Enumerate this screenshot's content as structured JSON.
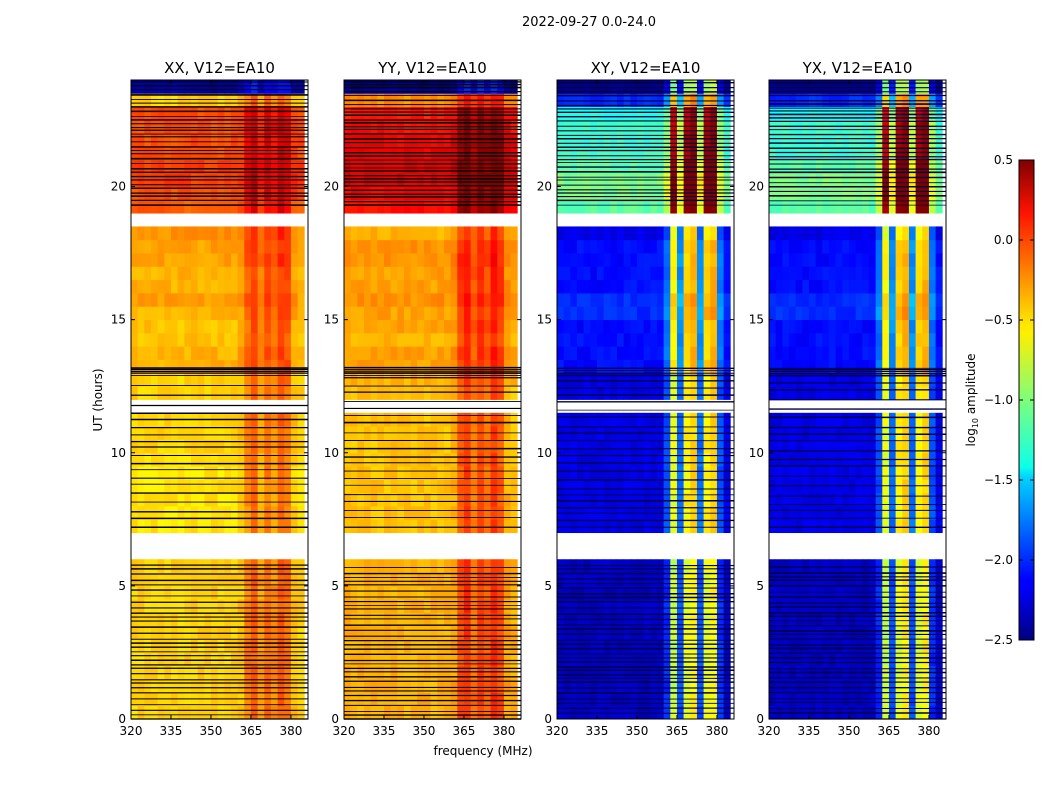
{
  "chart_data": {
    "type": "heatmap",
    "suptitle": "2022-09-27 0.0-24.0",
    "xlabel": "frequency (MHz)",
    "ylabel": "UT (hours)",
    "xlim": [
      320,
      386.4
    ],
    "ylim": [
      0,
      24
    ],
    "xticks": [
      320,
      335,
      350,
      365,
      380
    ],
    "yticks": [
      0,
      5,
      10,
      15,
      20
    ],
    "freq_bin_start_mhz": 320,
    "freq_bin_width_mhz": 2.5,
    "time_bin_hours": 0.5,
    "value_model": "value = row_levels[t] + band_offsets[f], clipped to colorbar range; null = no data",
    "panels": [
      {
        "title": "XX, V12=EA10",
        "row_levels": [
          -0.5,
          -0.5,
          -0.5,
          -0.5,
          -0.5,
          -0.5,
          -0.5,
          -0.5,
          -0.5,
          -0.5,
          -0.5,
          -0.5,
          null,
          null,
          -0.55,
          -0.55,
          -0.55,
          -0.55,
          -0.55,
          -0.55,
          -0.5,
          -0.5,
          -0.5,
          null,
          -0.5,
          -0.5,
          -0.4,
          -0.4,
          -0.45,
          -0.45,
          -0.4,
          -0.35,
          -0.4,
          -0.4,
          -0.35,
          -0.35,
          -0.3,
          null,
          -0.15,
          -0.1,
          -0.05,
          -0.05,
          -0.1,
          -0.1,
          -0.1,
          -0.1,
          -0.5,
          -2.4
        ],
        "band_offsets": [
          0,
          0,
          0,
          0,
          0,
          0,
          0,
          0,
          0,
          0,
          0,
          0,
          0,
          0,
          0,
          0,
          0.05,
          0.25,
          0.35,
          0.15,
          0.3,
          0.2,
          0.35,
          0.3,
          0.05,
          0
        ]
      },
      {
        "title": "YY, V12=EA10",
        "row_levels": [
          -0.4,
          -0.4,
          -0.4,
          -0.4,
          -0.4,
          -0.4,
          -0.4,
          -0.4,
          -0.4,
          -0.4,
          -0.4,
          -0.4,
          null,
          null,
          -0.45,
          -0.45,
          -0.45,
          -0.45,
          -0.45,
          -0.45,
          -0.45,
          -0.45,
          -0.45,
          null,
          -0.45,
          -0.4,
          -0.35,
          -0.35,
          -0.4,
          -0.35,
          -0.35,
          -0.3,
          -0.35,
          -0.35,
          -0.3,
          -0.3,
          -0.4,
          null,
          0.1,
          0.15,
          0.2,
          0.2,
          0.15,
          0.15,
          0.1,
          0.05,
          -0.3,
          -2.4
        ],
        "band_offsets": [
          0,
          0,
          0,
          0,
          0,
          0,
          0,
          0,
          0,
          0,
          0,
          0,
          0,
          0,
          0,
          0,
          0.05,
          0.3,
          0.4,
          0.2,
          0.35,
          0.25,
          0.4,
          0.3,
          0.05,
          0
        ]
      },
      {
        "title": "XY, V12=EA10",
        "row_levels": [
          -2.3,
          -2.3,
          -2.3,
          -2.3,
          -2.3,
          -2.3,
          -2.3,
          -2.3,
          -2.3,
          -2.3,
          -2.3,
          -2.3,
          null,
          null,
          -2.2,
          -2.2,
          -2.2,
          -2.2,
          -2.2,
          -2.2,
          -2.2,
          -2.2,
          -2.2,
          null,
          -2.2,
          -2.2,
          -2.1,
          -2.1,
          -2.1,
          -2.1,
          -2.0,
          -2.0,
          -2.1,
          -2.1,
          -2.1,
          -2.1,
          -2.2,
          null,
          -1.1,
          -1.0,
          -1.0,
          -1.1,
          -1.2,
          -1.2,
          -1.2,
          -1.3,
          -2.0,
          -2.5
        ],
        "band_offsets": [
          0,
          0,
          0,
          0,
          0,
          0,
          0,
          0,
          0,
          0,
          0,
          0,
          0,
          0,
          0,
          0,
          0.3,
          1.5,
          0.4,
          1.6,
          1.7,
          0.4,
          1.6,
          1.7,
          0.3,
          0
        ]
      },
      {
        "title": "YX, V12=EA10",
        "row_levels": [
          -2.3,
          -2.3,
          -2.3,
          -2.3,
          -2.3,
          -2.3,
          -2.3,
          -2.3,
          -2.3,
          -2.3,
          -2.3,
          -2.3,
          null,
          null,
          -2.2,
          -2.2,
          -2.2,
          -2.2,
          -2.2,
          -2.2,
          -2.2,
          -2.2,
          -2.2,
          null,
          -2.2,
          -2.2,
          -2.1,
          -2.1,
          -2.1,
          -2.1,
          -2.0,
          -2.0,
          -2.1,
          -2.1,
          -2.1,
          -2.1,
          -2.2,
          null,
          -1.1,
          -1.0,
          -1.0,
          -1.1,
          -1.2,
          -1.2,
          -1.2,
          -1.3,
          -2.0,
          -2.5
        ],
        "band_offsets": [
          0,
          0,
          0,
          0,
          0,
          0,
          0,
          0,
          0,
          0,
          0,
          0,
          0,
          0,
          0,
          0,
          0.3,
          1.5,
          0.4,
          1.6,
          1.7,
          0.4,
          1.6,
          1.7,
          0.3,
          0
        ]
      }
    ],
    "colorbar": {
      "label_prefix": "log",
      "label_sub": "10",
      "label_suffix": " amplitude",
      "range": [
        -2.5,
        0.5
      ],
      "ticks": [
        "0.5",
        "0.0",
        "−0.5",
        "−1.0",
        "−1.5",
        "−2.0",
        "−2.5"
      ],
      "tick_values": [
        0.5,
        0.0,
        -0.5,
        -1.0,
        -1.5,
        -2.0,
        -2.5
      ],
      "colormap": "jet"
    }
  }
}
